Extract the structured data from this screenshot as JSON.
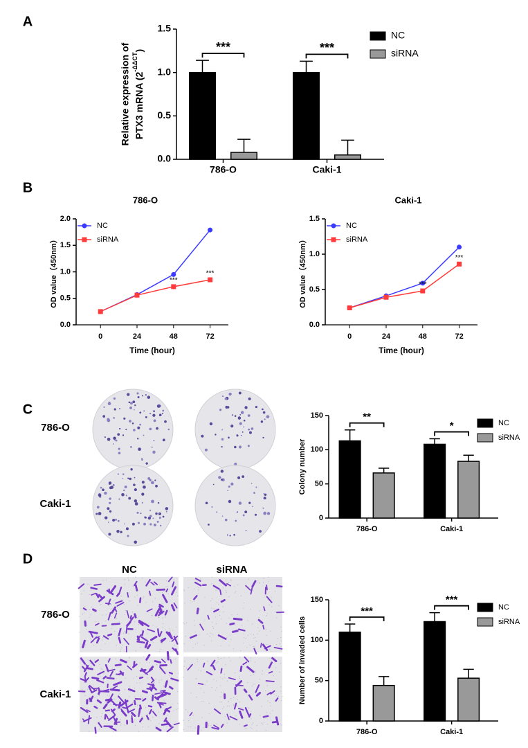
{
  "panel_labels": [
    "A",
    "B",
    "C",
    "D"
  ],
  "image_panels": [
    {
      "columns": [
        "NC",
        "siRNA"
      ],
      "rows": [
        "786-O",
        "Caki-1"
      ]
    },
    {
      "columns": [
        "NC",
        "siRNA"
      ],
      "rows": [
        "786-O",
        "Caki-1"
      ]
    }
  ],
  "chart_data": [
    {
      "type": "bar",
      "y_label": [
        "Relative expression of",
        "PTX3 mRNA (2",
        "-ΔΔCT",
        ")"
      ],
      "categories": [
        "786-O",
        "Caki-1"
      ],
      "series": [
        {
          "name": "NC",
          "color": "#000000",
          "values": [
            1.0,
            1.0
          ],
          "errors": [
            0.14,
            0.13
          ]
        },
        {
          "name": "siRNA",
          "color": "#999999",
          "values": [
            0.08,
            0.05
          ],
          "errors": [
            0.15,
            0.17
          ]
        }
      ],
      "significance": [
        "***",
        "***"
      ],
      "ylim": [
        0,
        1.5
      ],
      "yticks": [
        {
          "value": 0,
          "label": "0.0"
        },
        {
          "value": 0.5,
          "label": "0.5"
        },
        {
          "value": 1,
          "label": "1.0"
        },
        {
          "value": 1.5,
          "label": "1.5"
        }
      ],
      "legend": "outside right"
    },
    {
      "type": "line",
      "title": "786-O",
      "x_label": "Time (hour)",
      "y_label": [
        "OD value（450nm）"
      ],
      "x": [
        0,
        24,
        48,
        72
      ],
      "series": [
        {
          "name": "NC",
          "color": "#3b3bff",
          "marker": "circle",
          "values": [
            0.25,
            0.57,
            0.95,
            1.79
          ]
        },
        {
          "name": "siRNA",
          "color": "#ff3b3b",
          "marker": "square",
          "values": [
            0.25,
            0.56,
            0.72,
            0.85
          ]
        }
      ],
      "annotations": [
        {
          "x": 48,
          "text": "***"
        },
        {
          "x": 72,
          "text": "***"
        }
      ],
      "xlim": [
        -16,
        84
      ],
      "xticks": [
        0,
        24,
        48,
        72
      ],
      "ylim": [
        0,
        2
      ],
      "yticks": [
        {
          "value": 0,
          "label": "0.0"
        },
        {
          "value": 0.5,
          "label": "0.5"
        },
        {
          "value": 1,
          "label": "1.0"
        },
        {
          "value": 1.5,
          "label": "1.5"
        },
        {
          "value": 2,
          "label": "2.0"
        }
      ],
      "legend": "upper left"
    },
    {
      "type": "line",
      "title": "Caki-1",
      "x_label": "Time (hour)",
      "y_label": [
        "OD value（450nm）"
      ],
      "x": [
        0,
        24,
        48,
        72
      ],
      "series": [
        {
          "name": "NC",
          "color": "#3b3bff",
          "marker": "circle",
          "values": [
            0.24,
            0.41,
            0.59,
            1.1
          ]
        },
        {
          "name": "siRNA",
          "color": "#ff3b3b",
          "marker": "square",
          "values": [
            0.24,
            0.39,
            0.48,
            0.86
          ]
        }
      ],
      "annotations": [
        {
          "x": 48,
          "text": "***"
        },
        {
          "x": 72,
          "text": "***"
        }
      ],
      "xlim": [
        -16,
        84
      ],
      "xticks": [
        0,
        24,
        48,
        72
      ],
      "ylim": [
        0,
        1.5
      ],
      "yticks": [
        {
          "value": 0,
          "label": "0.0"
        },
        {
          "value": 0.5,
          "label": "0.5"
        },
        {
          "value": 1,
          "label": "1.0"
        },
        {
          "value": 1.5,
          "label": "1.5"
        }
      ],
      "legend": "upper left"
    },
    {
      "type": "bar",
      "y_label": [
        "Colony number"
      ],
      "categories": [
        "786-O",
        "Caki-1"
      ],
      "series": [
        {
          "name": "NC",
          "color": "#000000",
          "values": [
            113,
            108
          ],
          "errors": [
            16,
            8
          ]
        },
        {
          "name": "siRNA",
          "color": "#999999",
          "values": [
            66,
            83
          ],
          "errors": [
            7,
            9
          ]
        }
      ],
      "significance": [
        "**",
        "*"
      ],
      "ylim": [
        0,
        150
      ],
      "yticks": [
        0,
        50,
        100,
        150
      ],
      "legend": "outside right"
    },
    {
      "type": "bar",
      "y_label": [
        "Number of invaded cells"
      ],
      "categories": [
        "786-O",
        "Caki-1"
      ],
      "series": [
        {
          "name": "NC",
          "color": "#000000",
          "values": [
            110,
            123
          ],
          "errors": [
            10,
            11
          ]
        },
        {
          "name": "siRNA",
          "color": "#999999",
          "values": [
            44,
            53
          ],
          "errors": [
            11,
            11
          ]
        }
      ],
      "significance": [
        "***",
        "***"
      ],
      "ylim": [
        0,
        150
      ],
      "yticks": [
        0,
        50,
        100,
        150
      ],
      "legend": "outside right"
    }
  ]
}
